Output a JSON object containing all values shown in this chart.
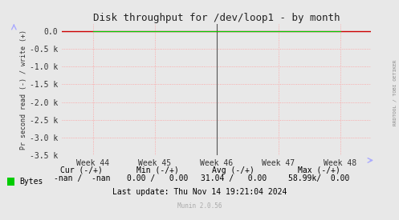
{
  "title": "Disk throughput for /dev/loop1 - by month",
  "ylabel": "Pr second read (-) / write (+)",
  "background_color": "#e8e8e8",
  "plot_bg_color": "#e8e8e8",
  "grid_color": "#ff9999",
  "border_color": "#aaaaaa",
  "line_color": "#00cc00",
  "x_labels": [
    "Week 44",
    "Week 45",
    "Week 46",
    "Week 47",
    "Week 48"
  ],
  "ylim": [
    -3500,
    200
  ],
  "ytick_vals": [
    0,
    -500,
    -1000,
    -1500,
    -2000,
    -2500,
    -3000,
    -3500
  ],
  "ytick_labels": [
    "0.0",
    "-0.5 k",
    "-1.0 k",
    "-1.5 k",
    "-2.0 k",
    "-2.5 k",
    "-3.0 k",
    "-3.5 k"
  ],
  "legend_label": "Bytes",
  "legend_color": "#00cc00",
  "cur_label": "Cur (-/+)",
  "min_label": "Min (-/+)",
  "avg_label": "Avg (-/+)",
  "max_label": "Max (-/+)",
  "cur_val": "-nan /  -nan",
  "min_val": "0.00 /   0.00",
  "avg_val": "31.04 /   0.00",
  "max_val": "58.99k/  0.00",
  "last_update": "Last update: Thu Nov 14 19:21:04 2024",
  "munin_label": "Munin 2.0.56",
  "rrdtool_label": "RRDTOOL / TOBI OETIKER",
  "zero_line_color": "#cc0000",
  "vline_color": "#555555",
  "vline_x": 2,
  "arrow_color": "#aaaaff",
  "font_size": 7,
  "title_font_size": 9
}
